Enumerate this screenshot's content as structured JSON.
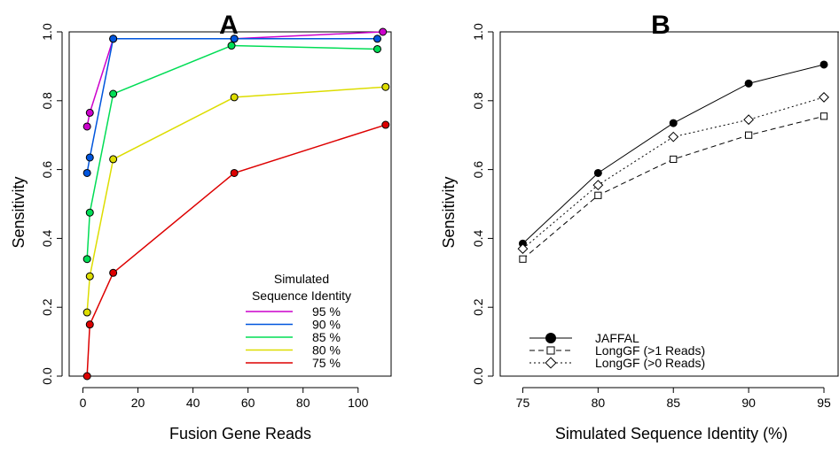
{
  "chart_data": [
    {
      "type": "line",
      "panel": "A",
      "title": "A",
      "xlabel": "Fusion Gene Reads",
      "ylabel": "Sensitivity",
      "xlim": [
        -5,
        112
      ],
      "ylim": [
        0,
        1.0
      ],
      "xticks": [
        0,
        20,
        40,
        60,
        80,
        100
      ],
      "yticks": [
        0.0,
        0.2,
        0.4,
        0.6,
        0.8,
        1.0
      ],
      "xtick_labels": [
        "0",
        "20",
        "40",
        "60",
        "80",
        "100"
      ],
      "ytick_labels": [
        "0.0",
        "0.2",
        "0.4",
        "0.6",
        "0.8",
        "1.0"
      ],
      "reference_line": 1.0,
      "legend_title": [
        "Simulated",
        "Sequence Identity"
      ],
      "legend_position": "bottom-right",
      "series": [
        {
          "name": "95 %",
          "color": "#cc00cc",
          "x": [
            1.5,
            2.5,
            11,
            55,
            109
          ],
          "y": [
            0.725,
            0.765,
            0.98,
            0.98,
            1.0
          ]
        },
        {
          "name": "90 %",
          "color": "#0055dd",
          "x": [
            1.5,
            2.5,
            11,
            55,
            107
          ],
          "y": [
            0.59,
            0.635,
            0.98,
            0.98,
            0.98
          ]
        },
        {
          "name": "85 %",
          "color": "#00dd55",
          "x": [
            1.5,
            2.5,
            11,
            54,
            107
          ],
          "y": [
            0.34,
            0.475,
            0.82,
            0.96,
            0.95
          ]
        },
        {
          "name": "80 %",
          "color": "#dddd00",
          "x": [
            1.5,
            2.5,
            11,
            55,
            110
          ],
          "y": [
            0.185,
            0.29,
            0.63,
            0.81,
            0.84
          ]
        },
        {
          "name": "75 %",
          "color": "#dd0000",
          "x": [
            1.5,
            2.5,
            11,
            55,
            110
          ],
          "y": [
            0.0,
            0.15,
            0.3,
            0.59,
            0.73
          ]
        }
      ]
    },
    {
      "type": "line",
      "panel": "B",
      "title": "B",
      "xlabel": "Simulated Sequence Identity (%)",
      "ylabel": "Sensitivity",
      "xlim": [
        73.5,
        96
      ],
      "ylim": [
        0,
        1.0
      ],
      "xticks": [
        75,
        80,
        85,
        90,
        95
      ],
      "yticks": [
        0.0,
        0.2,
        0.4,
        0.6,
        0.8,
        1.0
      ],
      "xtick_labels": [
        "75",
        "80",
        "85",
        "90",
        "95"
      ],
      "ytick_labels": [
        "0.0",
        "0.2",
        "0.4",
        "0.6",
        "0.8",
        "1.0"
      ],
      "reference_line": 1.0,
      "legend_position": "bottom-left",
      "series": [
        {
          "name": "JAFFAL",
          "marker": "filled-circle",
          "linestyle": "solid",
          "x": [
            75,
            80,
            85,
            90,
            95
          ],
          "y": [
            0.385,
            0.59,
            0.735,
            0.85,
            0.905
          ]
        },
        {
          "name": "LongGF (>1 Reads)",
          "marker": "open-square",
          "linestyle": "dashed",
          "x": [
            75,
            80,
            85,
            90,
            95
          ],
          "y": [
            0.34,
            0.525,
            0.63,
            0.7,
            0.755
          ]
        },
        {
          "name": "LongGF (>0 Reads)",
          "marker": "open-diamond",
          "linestyle": "dotted",
          "x": [
            75,
            80,
            85,
            90,
            95
          ],
          "y": [
            0.37,
            0.555,
            0.695,
            0.745,
            0.81
          ]
        }
      ]
    }
  ]
}
